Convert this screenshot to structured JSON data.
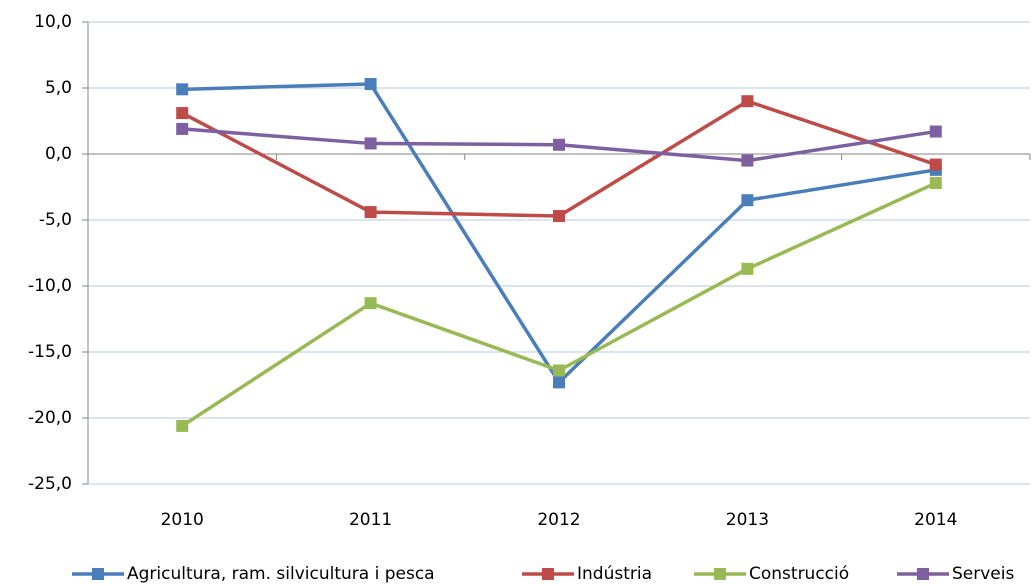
{
  "chart_data": {
    "type": "line",
    "categories": [
      "2010",
      "2011",
      "2012",
      "2013",
      "2014"
    ],
    "series": [
      {
        "name": "Agricultura, ram. silvicultura i pesca",
        "color": "#4a7ebb",
        "values": [
          4.9,
          5.3,
          -17.3,
          -3.5,
          -1.2
        ]
      },
      {
        "name": "Indústria",
        "color": "#be4b48",
        "values": [
          3.1,
          -4.4,
          -4.7,
          4.0,
          -0.8
        ]
      },
      {
        "name": "Construcció",
        "color": "#98b954",
        "values": [
          -20.6,
          -11.3,
          -16.4,
          -8.7,
          -2.2
        ]
      },
      {
        "name": "Serveis",
        "color": "#7d60a0",
        "values": [
          1.9,
          0.8,
          0.7,
          -0.5,
          1.7
        ]
      }
    ],
    "ylim": [
      -25,
      10
    ],
    "yticks": [
      {
        "value": -25,
        "label": "-25,0"
      },
      {
        "value": -20,
        "label": "-20,0"
      },
      {
        "value": -15,
        "label": "-15,0"
      },
      {
        "value": -10,
        "label": "-10,0"
      },
      {
        "value": -5,
        "label": "-5,0"
      },
      {
        "value": 0,
        "label": "0,0"
      },
      {
        "value": 5,
        "label": "5,0"
      },
      {
        "value": 10,
        "label": "10,0"
      }
    ],
    "grid": true,
    "legend": "bottom"
  }
}
